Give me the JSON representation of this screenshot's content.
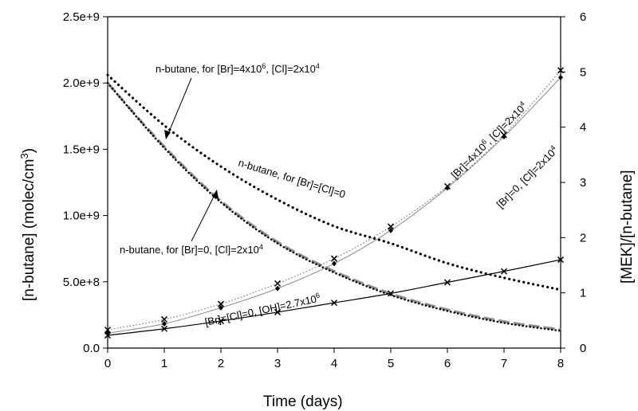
{
  "chart_data": {
    "type": "line",
    "title": "",
    "xlabel": "Time (days)",
    "ylabel_left": "[n-butane] (molec/cm3)",
    "ylabel_right": "[MEK]/[n-butane]",
    "xlim": [
      0,
      8
    ],
    "ylim_left": [
      0,
      2500000000.0
    ],
    "ylim_right": [
      0,
      6
    ],
    "x_ticks": [
      "0",
      "1",
      "2",
      "3",
      "4",
      "5",
      "6",
      "7",
      "8"
    ],
    "y_left_ticks": [
      "0.0",
      "5.0e+8",
      "1.0e+9",
      "1.5e+9",
      "2.0e+9",
      "2.5e+9"
    ],
    "y_right_ticks": [
      "0",
      "1",
      "2",
      "3",
      "4",
      "5",
      "6"
    ],
    "grid": false,
    "legend": "none",
    "series": [
      {
        "axis": "left",
        "style": "dotted-bold",
        "color": "#000000",
        "x": [
          0,
          1,
          2,
          3,
          4,
          5,
          6,
          7,
          8
        ],
        "values": [
          2060000000.0,
          1680000000.0,
          1370000000.0,
          1120000000.0,
          920000000.0,
          790000000.0,
          640000000.0,
          530000000.0,
          440000000.0
        ]
      },
      {
        "axis": "left",
        "style": "dashed-gray",
        "color": "#909090",
        "x": [
          0,
          1,
          2,
          3,
          4,
          5,
          6,
          7,
          8
        ],
        "values": [
          2000000000.0,
          1520000000.0,
          1110000000.0,
          800000000.0,
          580000000.0,
          410000000.0,
          290000000.0,
          200000000.0,
          140000000.0
        ]
      },
      {
        "axis": "left",
        "style": "dotted-black",
        "color": "#000000",
        "x": [
          0,
          1,
          2,
          3,
          4,
          5,
          6,
          7,
          8
        ],
        "values": [
          2000000000.0,
          1510000000.0,
          1100000000.0,
          790000000.0,
          570000000.0,
          400000000.0,
          280000000.0,
          190000000.0,
          130000000.0
        ]
      },
      {
        "axis": "right",
        "style": "solid-black",
        "marker": "x",
        "color": "#000000",
        "x": [
          0,
          1,
          2,
          3,
          4,
          5,
          6,
          7,
          8
        ],
        "values": [
          0.23,
          0.35,
          0.49,
          0.65,
          0.82,
          0.99,
          1.19,
          1.39,
          1.6
        ]
      },
      {
        "axis": "right",
        "style": "solid-thin",
        "marker": "diamond",
        "color": "#808080",
        "x": [
          0,
          1,
          2,
          3,
          4,
          5,
          6,
          7,
          8
        ],
        "values": [
          0.27,
          0.44,
          0.73,
          1.08,
          1.53,
          2.13,
          2.9,
          3.83,
          4.9
        ]
      },
      {
        "axis": "right",
        "style": "dotted-thin",
        "marker": "x",
        "color": "#808080",
        "x": [
          0,
          1,
          2,
          3,
          4,
          5,
          6,
          7,
          8
        ],
        "values": [
          0.33,
          0.52,
          0.8,
          1.17,
          1.62,
          2.2,
          2.93,
          3.86,
          5.03
        ]
      }
    ],
    "annotations": [
      {
        "text": "n-butane, for [Br]=4x10",
        "sup": "6",
        "text2": ", [Cl]=2x10",
        "sup2": "4"
      },
      {
        "text": "n-butane, for [Br]=[Cl]=0"
      },
      {
        "text": "n-butane, for [Br]=0, [Cl]=2x10",
        "sup": "4"
      },
      {
        "text": "[Br]=[Cl]=0, [OH]=2.7x10",
        "sup": "6"
      },
      {
        "text": "[Br]=4x10",
        "sup": "6",
        "text2": ", [Cl]=2x10",
        "sup2": "4"
      },
      {
        "text": "[Br]=0, [Cl]=2x10",
        "sup": "4"
      }
    ]
  }
}
